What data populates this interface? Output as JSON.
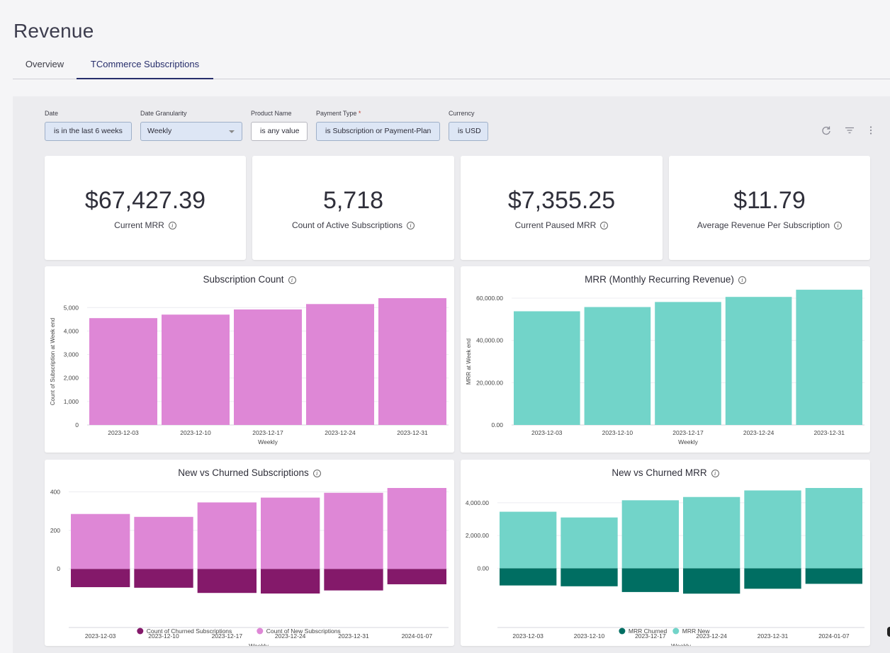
{
  "page": {
    "title": "Revenue"
  },
  "tabs": [
    {
      "label": "Overview",
      "active": false
    },
    {
      "label": "TCommerce Subscriptions",
      "active": true
    }
  ],
  "filters": [
    {
      "label": "Date",
      "value": "is in the last 6 weeks",
      "required": false
    },
    {
      "label": "Date Granularity",
      "value": "Weekly",
      "required": false,
      "dropdown": true
    },
    {
      "label": "Product Name",
      "value": "is any value",
      "required": false
    },
    {
      "label": "Payment Type",
      "value": "is Subscription or Payment-Plan",
      "required": true
    },
    {
      "label": "Currency",
      "value": "is USD",
      "required": false
    }
  ],
  "toolbar": {
    "refresh_icon": "refresh-icon",
    "filter_icon": "filter-icon",
    "menu_icon": "more-vert-icon"
  },
  "kpis": [
    {
      "value": "$67,427.39",
      "label": "Current MRR"
    },
    {
      "value": "5,718",
      "label": "Count of Active Subscriptions"
    },
    {
      "value": "$7,355.25",
      "label": "Current Paused MRR"
    },
    {
      "value": "$11.79",
      "label": "Average Revenue Per Subscription"
    }
  ],
  "colors": {
    "pink": "#de87d6",
    "plum": "#84196a",
    "teal": "#72d4c9",
    "dark_teal": "#006e62",
    "accent": "#262d6b"
  },
  "chart_data": [
    {
      "type": "bar",
      "title": "Subscription Count",
      "xlabel": "Weekly",
      "ylabel": "Count of Subscription at Week end",
      "categories": [
        "2023-12-03",
        "2023-12-10",
        "2023-12-17",
        "2023-12-24",
        "2023-12-31"
      ],
      "values": [
        4550,
        4700,
        4920,
        5150,
        5400
      ],
      "ylim": [
        0,
        5400
      ],
      "yticks": [
        0,
        1000,
        2000,
        3000,
        4000,
        5000
      ],
      "ytick_labels": [
        "0",
        "1,000",
        "2,000",
        "3,000",
        "4,000",
        "5,000"
      ],
      "color": "#de87d6",
      "grid": true
    },
    {
      "type": "bar",
      "title": "MRR (Monthly Recurring Revenue)",
      "xlabel": "Weekly",
      "ylabel": "MRR at Week end",
      "categories": [
        "2023-12-03",
        "2023-12-10",
        "2023-12-17",
        "2023-12-24",
        "2023-12-31"
      ],
      "values": [
        53800,
        55800,
        58200,
        60600,
        64000
      ],
      "ylim": [
        0,
        60000
      ],
      "yticks": [
        0,
        20000,
        40000,
        60000
      ],
      "ytick_labels": [
        "0.00",
        "20,000.00",
        "40,000.00",
        "60,000.00"
      ],
      "color": "#72d4c9",
      "grid": true
    },
    {
      "type": "bar",
      "title": "New vs Churned Subscriptions",
      "xlabel": "Weekly",
      "ylabel": "",
      "categories": [
        "2023-12-03",
        "2023-12-10",
        "2023-12-17",
        "2023-12-24",
        "2023-12-31",
        "2024-01-07"
      ],
      "series": [
        {
          "name": "Count of Churned Subscriptions",
          "values": [
            -95,
            -98,
            -125,
            -128,
            -112,
            -80
          ],
          "color": "#84196a"
        },
        {
          "name": "Count of New Subscriptions",
          "values": [
            285,
            270,
            345,
            370,
            395,
            420
          ],
          "color": "#de87d6"
        }
      ],
      "ylim": [
        -150,
        420
      ],
      "yticks": [
        0,
        200,
        400
      ],
      "ytick_labels": [
        "0",
        "200",
        "400"
      ],
      "legend": "bottom",
      "grid": true
    },
    {
      "type": "bar",
      "title": "New vs Churned MRR",
      "xlabel": "Weekly",
      "ylabel": "",
      "categories": [
        "2023-12-03",
        "2023-12-10",
        "2023-12-17",
        "2023-12-24",
        "2023-12-31",
        "2024-01-07"
      ],
      "series": [
        {
          "name": "MRR Churned",
          "values": [
            -1050,
            -1100,
            -1450,
            -1550,
            -1250,
            -950
          ],
          "color": "#006e62"
        },
        {
          "name": "MRR New",
          "values": [
            3450,
            3100,
            4150,
            4350,
            4750,
            4900
          ],
          "color": "#72d4c9"
        }
      ],
      "ylim": [
        -1800,
        4900
      ],
      "yticks": [
        0,
        2000,
        4000
      ],
      "ytick_labels": [
        "0.00",
        "2,000.00",
        "4,000.00"
      ],
      "legend": "bottom",
      "grid": true
    }
  ]
}
